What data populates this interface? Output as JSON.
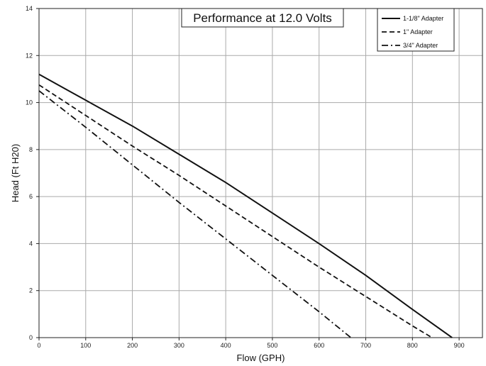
{
  "chart_data": {
    "type": "line",
    "title": "Performance at 12.0 Volts",
    "xlabel": "Flow (GPH)",
    "ylabel": "Head (Ft H20)",
    "xlim": [
      0,
      950
    ],
    "ylim": [
      0,
      14
    ],
    "xticks": [
      0,
      100,
      200,
      300,
      400,
      500,
      600,
      700,
      800,
      900
    ],
    "yticks": [
      0,
      2,
      4,
      6,
      8,
      10,
      12,
      14
    ],
    "grid": true,
    "legend_position": "top-right",
    "series": [
      {
        "name": "1-1/8\" Adapter",
        "style": "solid",
        "color": "#111111",
        "x": [
          0,
          100,
          200,
          300,
          400,
          500,
          600,
          700,
          800,
          885
        ],
        "y": [
          11.2,
          10.1,
          9.0,
          7.8,
          6.6,
          5.3,
          4.0,
          2.65,
          1.2,
          0
        ]
      },
      {
        "name": "1\" Adapter",
        "style": "dashed",
        "color": "#111111",
        "x": [
          0,
          100,
          200,
          300,
          400,
          500,
          600,
          700,
          800,
          842
        ],
        "y": [
          10.75,
          9.45,
          8.15,
          6.9,
          5.6,
          4.3,
          3.0,
          1.75,
          0.5,
          0
        ]
      },
      {
        "name": "3/4\" Adapter",
        "style": "dashdot",
        "color": "#111111",
        "x": [
          0,
          100,
          200,
          300,
          400,
          500,
          600,
          668
        ],
        "y": [
          10.5,
          8.95,
          7.35,
          5.75,
          4.2,
          2.65,
          1.1,
          0
        ]
      }
    ]
  }
}
